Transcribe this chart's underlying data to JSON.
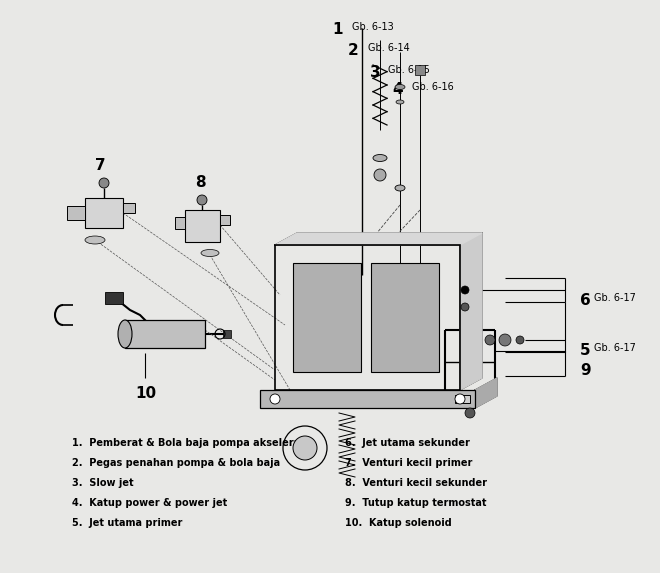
{
  "bg_color": "#e8e8e6",
  "fig_w": 6.4,
  "fig_h": 5.53,
  "labels_left": [
    "1.  Pemberat & Bola baja pompa akselerasi",
    "2.  Pegas penahan pompa & bola baja",
    "3.  Slow jet",
    "4.  Katup power & power jet",
    "5.  Jet utama primer"
  ],
  "labels_right": [
    "6.  Jet utama sekunder",
    "7.  Venturi kecil primer",
    "8.  Venturi kecil sekunder",
    "9.  Tutup katup termostat",
    "10.  Katup solenoid"
  ]
}
